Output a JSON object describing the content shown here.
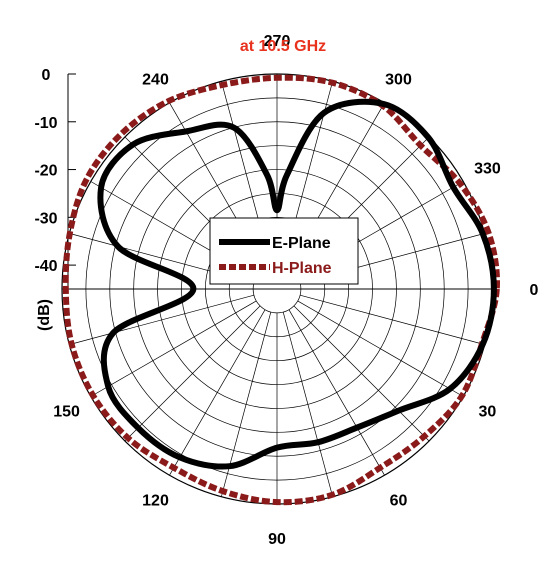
{
  "chart_data": {
    "type": "polar",
    "subtitle": "at  10.5 GHz",
    "radial_axis": {
      "label": "(dB)",
      "range": [
        -45,
        0
      ],
      "ticks": [
        0,
        -10,
        -20,
        -30,
        -40
      ],
      "tick_labels": [
        "0",
        "-10",
        "-20",
        "-30",
        "-40"
      ]
    },
    "angular_axis": {
      "direction": "clockwise",
      "zero_position": "right",
      "labeled_angles": [
        0,
        30,
        60,
        90,
        120,
        150,
        240,
        270,
        300,
        330
      ],
      "tick_labels": [
        "0",
        "30",
        "60",
        "90",
        "120",
        "150",
        "240",
        "270",
        "300",
        "330"
      ],
      "spoke_step_deg": 15
    },
    "grid": true,
    "legend": {
      "position": "center",
      "entries": [
        "E-Plane",
        "H-Plane"
      ]
    },
    "series": [
      {
        "name": "E-Plane",
        "color": "#000000",
        "style": "solid",
        "theta": [
          0,
          15,
          30,
          45,
          60,
          75,
          90,
          105,
          120,
          135,
          150,
          165,
          180,
          195,
          210,
          225,
          240,
          255,
          265,
          270,
          275,
          285,
          300,
          315,
          330,
          345,
          360
        ],
        "r": [
          0.4,
          -0.4,
          -3.2,
          -9.0,
          -11.5,
          -11.8,
          -11.8,
          -6.6,
          -4.3,
          -3.9,
          -4.2,
          -9.5,
          -27.5,
          -10.5,
          -2.5,
          -2.3,
          -6.9,
          -10.0,
          -21.0,
          -28.5,
          -21.0,
          -6.8,
          -0.3,
          -0.2,
          -2.4,
          -0.4,
          0.4
        ]
      },
      {
        "name": "H-Plane",
        "color": "#8b1a1a",
        "style": "dashed",
        "theta": [
          0,
          15,
          30,
          45,
          60,
          75,
          90,
          105,
          120,
          135,
          150,
          165,
          180,
          195,
          210,
          225,
          240,
          255,
          270,
          285,
          300,
          315,
          330,
          345,
          360
        ],
        "r": [
          1.0,
          -0.6,
          -0.3,
          -1.4,
          -1.8,
          -0.4,
          -0.4,
          -1.2,
          -1.8,
          -0.9,
          -0.5,
          -0.5,
          -0.8,
          -0.1,
          1.0,
          1.0,
          0.4,
          -0.8,
          -0.8,
          -0.3,
          -0.7,
          -2.5,
          -0.8,
          0.8,
          1.0
        ]
      }
    ]
  }
}
